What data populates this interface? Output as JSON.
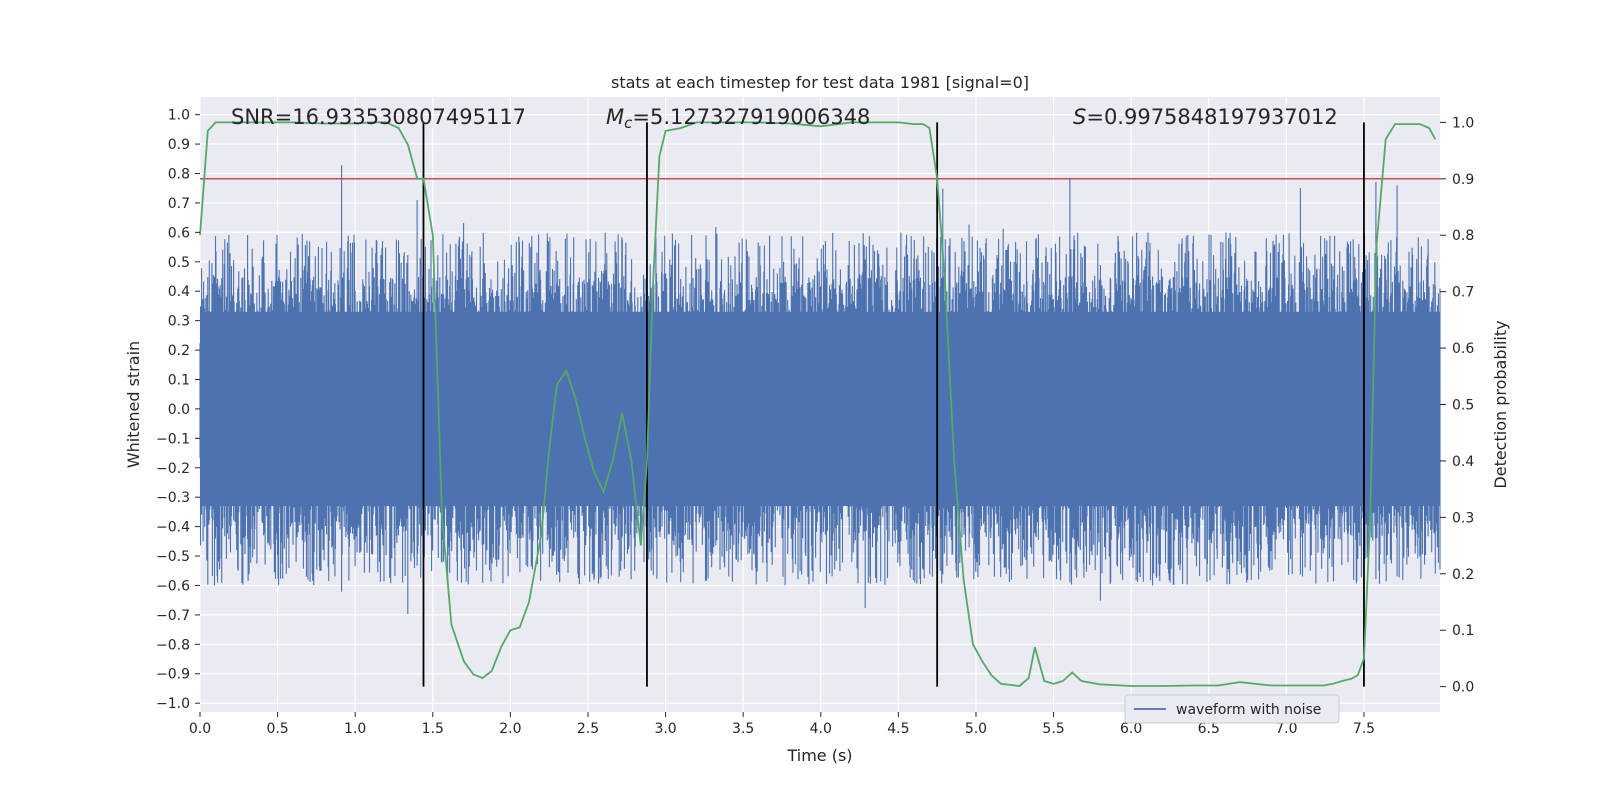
{
  "chart_data": {
    "type": "line",
    "title": "stats at each timestep for test data 1981 [signal=0]",
    "xlabel": "Time (s)",
    "ylabel_left": "Whitened strain",
    "ylabel_right": "Detection probability",
    "xlim": [
      0.0,
      7.99
    ],
    "ylim_left": [
      -1.03,
      1.06
    ],
    "ylim_right": [
      -0.045,
      1.045
    ],
    "grid": true,
    "legend_position": "lower-right",
    "x_ticks": [
      "0.0",
      "0.5",
      "1.0",
      "1.5",
      "2.0",
      "2.5",
      "3.0",
      "3.5",
      "4.0",
      "4.5",
      "5.0",
      "5.5",
      "6.0",
      "6.5",
      "7.0",
      "7.5"
    ],
    "x_tick_values": [
      0.0,
      0.5,
      1.0,
      1.5,
      2.0,
      2.5,
      3.0,
      3.5,
      4.0,
      4.5,
      5.0,
      5.5,
      6.0,
      6.5,
      7.0,
      7.5
    ],
    "y_ticks_left": [
      "1.0",
      "0.9",
      "0.8",
      "0.7",
      "0.6",
      "0.5",
      "0.4",
      "0.3",
      "0.2",
      "0.1",
      "0.0",
      "−0.1",
      "−0.2",
      "−0.3",
      "−0.4",
      "−0.5",
      "−0.6",
      "−0.7",
      "−0.8",
      "−0.9",
      "−1.0"
    ],
    "y_tick_values_left": [
      1.0,
      0.9,
      0.8,
      0.7,
      0.6,
      0.5,
      0.4,
      0.3,
      0.2,
      0.1,
      0.0,
      -0.1,
      -0.2,
      -0.3,
      -0.4,
      -0.5,
      -0.6,
      -0.7,
      -0.8,
      -0.9,
      -1.0
    ],
    "y_ticks_right": [
      "1.0",
      "0.9",
      "0.8",
      "0.7",
      "0.6",
      "0.5",
      "0.4",
      "0.3",
      "0.2",
      "0.1",
      "0.0"
    ],
    "y_tick_values_right": [
      1.0,
      0.9,
      0.8,
      0.7,
      0.6,
      0.5,
      0.4,
      0.3,
      0.2,
      0.1,
      0.0
    ],
    "annotations": {
      "snr": "SNR=16.933530807495117",
      "mc_symbol": "M",
      "mc_subscript": "c",
      "mc_value": "=5.127327919006348",
      "s_symbol": "S",
      "s_value": "=0.9975848197937012"
    },
    "threshold": {
      "value": 0.9,
      "axis": "right",
      "color": "#c44e52"
    },
    "vertical_lines": [
      1.44,
      2.88,
      4.75,
      7.5
    ],
    "waveform": {
      "name": "waveform with noise",
      "color": "#4c72b0",
      "envelope_typical": 0.6,
      "peak_max": 1.0,
      "trough_min": -0.83
    },
    "series": [
      {
        "name": "",
        "axis": "right",
        "color": "#55a868",
        "x": [
          0.0,
          0.05,
          0.1,
          0.2,
          0.4,
          0.6,
          0.8,
          1.0,
          1.1,
          1.2,
          1.28,
          1.34,
          1.4,
          1.44,
          1.5,
          1.56,
          1.62,
          1.7,
          1.76,
          1.82,
          1.88,
          1.94,
          2.0,
          2.06,
          2.12,
          2.2,
          2.25,
          2.3,
          2.36,
          2.42,
          2.48,
          2.54,
          2.6,
          2.66,
          2.72,
          2.78,
          2.84,
          2.88,
          2.92,
          2.96,
          3.0,
          3.1,
          3.2,
          3.4,
          3.6,
          3.8,
          4.0,
          4.2,
          4.4,
          4.5,
          4.6,
          4.66,
          4.7,
          4.75,
          4.8,
          4.86,
          4.92,
          4.98,
          5.04,
          5.1,
          5.16,
          5.22,
          5.28,
          5.34,
          5.38,
          5.44,
          5.5,
          5.56,
          5.62,
          5.68,
          5.8,
          6.0,
          6.2,
          6.4,
          6.56,
          6.7,
          6.9,
          7.1,
          7.24,
          7.3,
          7.36,
          7.42,
          7.46,
          7.5,
          7.54,
          7.58,
          7.64,
          7.7,
          7.86,
          7.92,
          7.96
        ],
        "y": [
          0.8,
          0.985,
          1.0,
          1.0,
          1.0,
          1.0,
          0.998,
          0.998,
          1.0,
          1.0,
          0.99,
          0.96,
          0.9,
          0.9,
          0.8,
          0.3,
          0.11,
          0.045,
          0.022,
          0.015,
          0.028,
          0.07,
          0.1,
          0.105,
          0.15,
          0.27,
          0.42,
          0.535,
          0.56,
          0.51,
          0.44,
          0.38,
          0.345,
          0.4,
          0.485,
          0.4,
          0.25,
          0.4,
          0.72,
          0.94,
          0.985,
          0.99,
          1.0,
          1.0,
          1.0,
          0.998,
          0.993,
          1.0,
          1.0,
          1.0,
          0.997,
          0.997,
          0.99,
          0.9,
          0.72,
          0.4,
          0.19,
          0.075,
          0.045,
          0.02,
          0.005,
          0.003,
          0.001,
          0.015,
          0.07,
          0.01,
          0.005,
          0.01,
          0.025,
          0.01,
          0.004,
          0.001,
          0.001,
          0.002,
          0.002,
          0.008,
          0.002,
          0.002,
          0.002,
          0.005,
          0.01,
          0.014,
          0.02,
          0.05,
          0.3,
          0.78,
          0.97,
          0.997,
          0.997,
          0.99,
          0.97
        ]
      }
    ]
  }
}
